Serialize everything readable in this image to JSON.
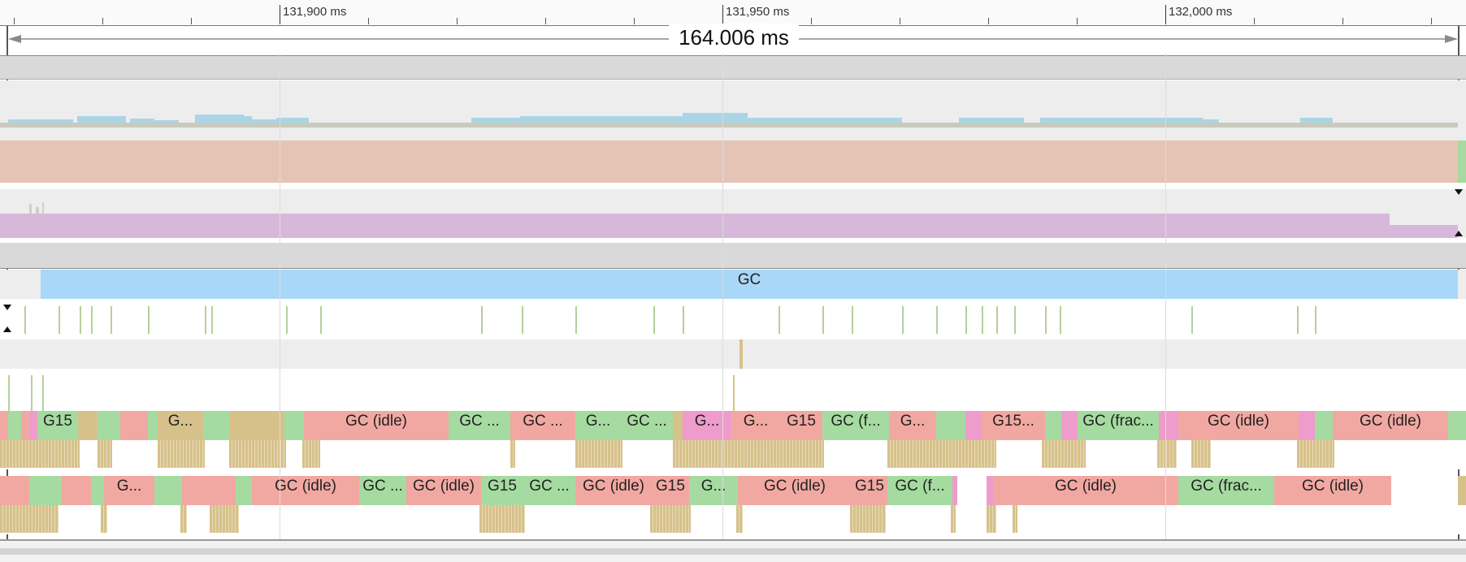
{
  "ruler": {
    "labels": [
      "131,900 ms",
      "131,950 ms",
      "132,000 ms"
    ]
  },
  "range": {
    "label": "164.006 ms"
  },
  "colors": {
    "gc_blue": "#a9d7f7",
    "idle_red": "#f2a8a2",
    "green": "#a5dba0",
    "tan": "#d7c18b",
    "pink": "#ee9ccb",
    "purple_track": "#d7b8da",
    "salmon_track": "#e6c4b5",
    "light_blue_activity": "#a9d5e6",
    "tick_green": "#b5d09a"
  },
  "gc_bar": {
    "label": "GC"
  },
  "thread_a": {
    "labels": [
      "G15",
      "G...",
      "GC (idle)",
      "GC ...",
      "GC ...",
      "G...",
      "GC ...",
      "G...",
      "G...",
      "G15",
      "GC (f...",
      "G...",
      "G15...",
      "GC (frac...",
      "GC (idle)",
      "GC (idle)"
    ]
  },
  "thread_b": {
    "labels": [
      "G...",
      "GC (idle)",
      "GC ...",
      "GC (idle)",
      "G15",
      "GC ...",
      "GC (idle)",
      "G15",
      "G...",
      "GC (idle)",
      "G15",
      "GC (f...",
      "GC (idle)",
      "GC (frac...",
      "GC (idle)"
    ]
  }
}
